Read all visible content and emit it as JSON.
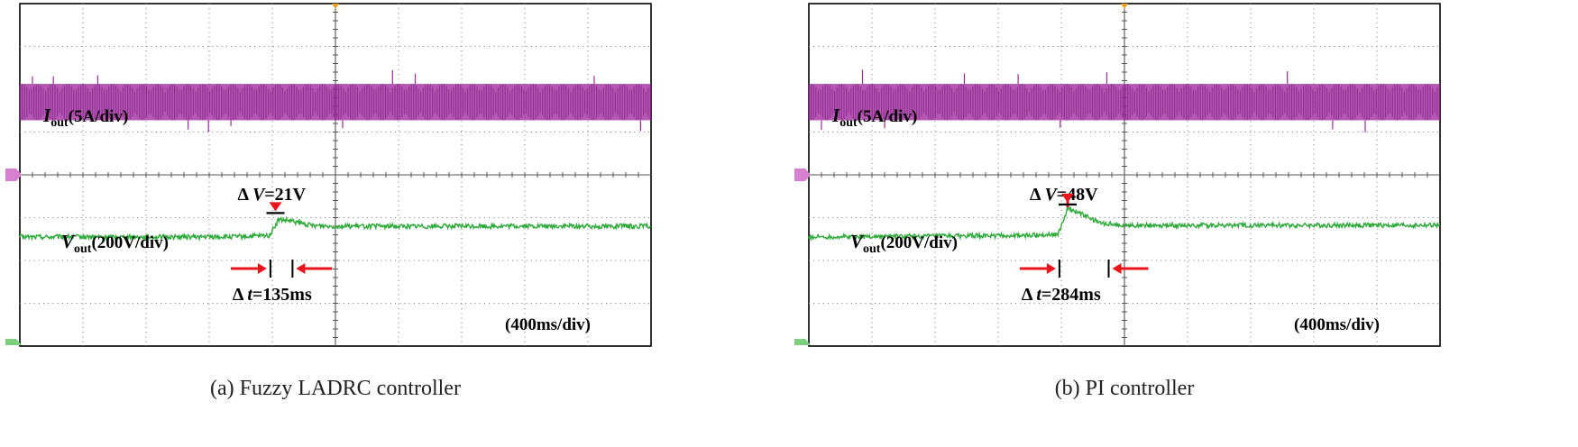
{
  "chart_data": [
    {
      "type": "line",
      "title": "(a) Fuzzy LADRC controller",
      "time_scale": "(400ms/div)",
      "x_unit": "div",
      "xlim": [
        0,
        10
      ],
      "series": [
        {
          "name": "I",
          "subscript": "out",
          "scale": "(5A/div)",
          "color": "#a0289e",
          "kind": "ripple-band",
          "x_range": [
            0,
            10
          ],
          "level_div": 5.7,
          "band_div": 0.85
        },
        {
          "name": "V",
          "subscript": "out",
          "scale": "(200V/div)",
          "color": "#2eaa3a",
          "kind": "step-response",
          "points": [
            [
              0,
              2.55
            ],
            [
              3.4,
              2.55
            ],
            [
              3.95,
              2.58
            ],
            [
              4.1,
              2.95
            ],
            [
              4.3,
              2.92
            ],
            [
              4.6,
              2.82
            ],
            [
              5.0,
              2.8
            ],
            [
              10,
              2.8
            ]
          ]
        }
      ],
      "annotations": {
        "delta_v": {
          "prefix": "Δ",
          "var": "V",
          "value": "=21V",
          "x_div": 4.05
        },
        "delta_t": {
          "prefix": "Δ",
          "var": "t",
          "value": "=135ms",
          "x_start_div": 3.97,
          "x_end_div": 4.32
        }
      }
    },
    {
      "type": "line",
      "title": "(b) PI controller",
      "time_scale": "(400ms/div)",
      "x_unit": "div",
      "xlim": [
        0,
        10
      ],
      "series": [
        {
          "name": "I",
          "subscript": "out",
          "scale": "(5A/div)",
          "color": "#a0289e",
          "kind": "ripple-band",
          "x_range": [
            0,
            10
          ],
          "level_div": 5.7,
          "band_div": 0.85
        },
        {
          "name": "V",
          "subscript": "out",
          "scale": "(200V/div)",
          "color": "#2eaa3a",
          "kind": "step-response",
          "points": [
            [
              0,
              2.55
            ],
            [
              3.4,
              2.58
            ],
            [
              3.95,
              2.62
            ],
            [
              4.1,
              3.2
            ],
            [
              4.3,
              3.1
            ],
            [
              4.6,
              2.88
            ],
            [
              5.0,
              2.82
            ],
            [
              10,
              2.82
            ]
          ]
        }
      ],
      "annotations": {
        "delta_v": {
          "prefix": "Δ",
          "var": "V",
          "value": "=48V",
          "x_div": 4.1
        },
        "delta_t": {
          "prefix": "Δ",
          "var": "t",
          "value": "=284ms",
          "x_start_div": 3.97,
          "x_end_div": 4.75
        }
      }
    }
  ]
}
